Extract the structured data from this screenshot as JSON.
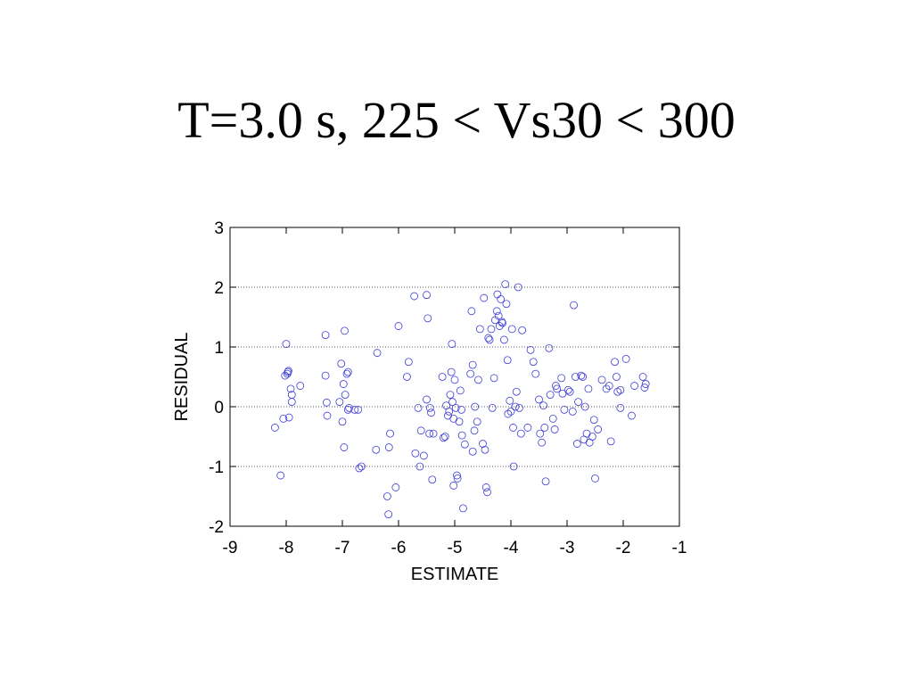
{
  "title": "T=3.0 s, 225 < Vs30 < 300",
  "colors": {
    "points": "#3b3bd6",
    "axes": "#000000",
    "grid": "#555555"
  },
  "chart_data": {
    "type": "scatter",
    "title": "T=3.0 s, 225 < Vs30 < 300",
    "xlabel": "ESTIMATE",
    "ylabel": "RESIDUAL",
    "xlim": [
      -9,
      -1
    ],
    "ylim": [
      -2,
      3
    ],
    "xticks": [
      -9,
      -8,
      -7,
      -6,
      -5,
      -4,
      -3,
      -2,
      -1
    ],
    "yticks": [
      -2,
      -1,
      0,
      1,
      2,
      3
    ],
    "grid": "horizontal-dotted",
    "marker": "open-circle",
    "series": [
      {
        "points": [
          [
            -8.2,
            -0.35
          ],
          [
            -8.1,
            -1.15
          ],
          [
            -8.05,
            -0.2
          ],
          [
            -8.0,
            1.05
          ],
          [
            -8.02,
            0.52
          ],
          [
            -7.98,
            0.55
          ],
          [
            -7.96,
            0.6
          ],
          [
            -7.97,
            0.58
          ],
          [
            -7.95,
            -0.18
          ],
          [
            -7.92,
            0.3
          ],
          [
            -7.9,
            0.2
          ],
          [
            -7.9,
            0.08
          ],
          [
            -7.75,
            0.35
          ],
          [
            -7.3,
            1.2
          ],
          [
            -7.3,
            0.52
          ],
          [
            -7.28,
            0.07
          ],
          [
            -7.27,
            -0.15
          ],
          [
            -7.05,
            0.08
          ],
          [
            -7.02,
            0.72
          ],
          [
            -7.0,
            -0.25
          ],
          [
            -6.98,
            0.38
          ],
          [
            -6.96,
            1.27
          ],
          [
            -6.95,
            0.2
          ],
          [
            -6.97,
            -0.68
          ],
          [
            -6.92,
            0.55
          ],
          [
            -6.9,
            0.58
          ],
          [
            -6.9,
            -0.05
          ],
          [
            -6.88,
            -0.02
          ],
          [
            -6.78,
            -0.05
          ],
          [
            -6.72,
            -0.05
          ],
          [
            -6.7,
            -1.03
          ],
          [
            -6.66,
            -1.0
          ],
          [
            -6.4,
            -0.72
          ],
          [
            -6.38,
            0.9
          ],
          [
            -6.2,
            -1.5
          ],
          [
            -6.18,
            -1.8
          ],
          [
            -6.17,
            -0.68
          ],
          [
            -6.15,
            -0.45
          ],
          [
            -6.05,
            -1.35
          ],
          [
            -6.0,
            1.35
          ],
          [
            -5.85,
            0.5
          ],
          [
            -5.82,
            0.75
          ],
          [
            -5.72,
            1.85
          ],
          [
            -5.7,
            -0.78
          ],
          [
            -5.65,
            -0.02
          ],
          [
            -5.62,
            -1.0
          ],
          [
            -5.6,
            -0.4
          ],
          [
            -5.55,
            -0.82
          ],
          [
            -5.5,
            1.87
          ],
          [
            -5.5,
            0.12
          ],
          [
            -5.48,
            1.48
          ],
          [
            -5.45,
            -0.45
          ],
          [
            -5.44,
            -0.02
          ],
          [
            -5.42,
            -0.1
          ],
          [
            -5.4,
            -1.22
          ],
          [
            -5.38,
            -0.45
          ],
          [
            -5.22,
            0.5
          ],
          [
            -5.2,
            -0.52
          ],
          [
            -5.17,
            -0.5
          ],
          [
            -5.15,
            0.02
          ],
          [
            -5.12,
            -0.15
          ],
          [
            -5.1,
            -0.08
          ],
          [
            -5.08,
            0.2
          ],
          [
            -5.06,
            0.58
          ],
          [
            -5.05,
            1.05
          ],
          [
            -5.04,
            0.08
          ],
          [
            -5.02,
            -0.2
          ],
          [
            -5.02,
            -1.32
          ],
          [
            -5.0,
            0.45
          ],
          [
            -4.98,
            -0.02
          ],
          [
            -4.96,
            -1.15
          ],
          [
            -4.95,
            -1.2
          ],
          [
            -4.92,
            -0.25
          ],
          [
            -4.9,
            0.27
          ],
          [
            -4.88,
            -0.05
          ],
          [
            -4.87,
            -0.48
          ],
          [
            -4.85,
            -1.7
          ],
          [
            -4.82,
            -0.63
          ],
          [
            -4.72,
            0.55
          ],
          [
            -4.7,
            1.6
          ],
          [
            -4.68,
            -0.75
          ],
          [
            -4.68,
            0.7
          ],
          [
            -4.65,
            -0.4
          ],
          [
            -4.64,
            0.0
          ],
          [
            -4.6,
            -0.25
          ],
          [
            -4.58,
            0.45
          ],
          [
            -4.55,
            1.3
          ],
          [
            -4.5,
            -0.62
          ],
          [
            -4.48,
            1.82
          ],
          [
            -4.46,
            -0.72
          ],
          [
            -4.44,
            -1.35
          ],
          [
            -4.42,
            -1.43
          ],
          [
            -4.4,
            1.15
          ],
          [
            -4.38,
            1.12
          ],
          [
            -4.35,
            1.3
          ],
          [
            -4.33,
            -0.02
          ],
          [
            -4.3,
            0.48
          ],
          [
            -4.28,
            1.45
          ],
          [
            -4.25,
            1.6
          ],
          [
            -4.24,
            1.88
          ],
          [
            -4.22,
            1.52
          ],
          [
            -4.2,
            1.35
          ],
          [
            -4.18,
            1.8
          ],
          [
            -4.16,
            1.42
          ],
          [
            -4.15,
            1.4
          ],
          [
            -4.12,
            1.12
          ],
          [
            -4.1,
            2.05
          ],
          [
            -4.08,
            1.72
          ],
          [
            -4.06,
            0.78
          ],
          [
            -4.05,
            -0.12
          ],
          [
            -4.02,
            0.1
          ],
          [
            -4.0,
            -0.08
          ],
          [
            -3.98,
            1.3
          ],
          [
            -3.96,
            -0.35
          ],
          [
            -3.95,
            -1.0
          ],
          [
            -3.92,
            0.0
          ],
          [
            -3.9,
            0.25
          ],
          [
            -3.87,
            2.0
          ],
          [
            -3.85,
            -0.02
          ],
          [
            -3.82,
            -0.45
          ],
          [
            -3.8,
            1.28
          ],
          [
            -3.7,
            -0.35
          ],
          [
            -3.65,
            0.95
          ],
          [
            -3.6,
            0.75
          ],
          [
            -3.56,
            0.55
          ],
          [
            -3.5,
            0.12
          ],
          [
            -3.48,
            -0.45
          ],
          [
            -3.45,
            -0.6
          ],
          [
            -3.42,
            0.02
          ],
          [
            -3.4,
            -0.35
          ],
          [
            -3.38,
            -1.25
          ],
          [
            -3.32,
            0.98
          ],
          [
            -3.3,
            0.2
          ],
          [
            -3.25,
            -0.2
          ],
          [
            -3.22,
            -0.38
          ],
          [
            -3.2,
            0.35
          ],
          [
            -3.18,
            0.3
          ],
          [
            -3.1,
            0.48
          ],
          [
            -3.08,
            0.22
          ],
          [
            -3.05,
            -0.05
          ],
          [
            -2.98,
            0.28
          ],
          [
            -2.95,
            0.25
          ],
          [
            -2.9,
            -0.08
          ],
          [
            -2.88,
            1.7
          ],
          [
            -2.85,
            0.5
          ],
          [
            -2.82,
            -0.62
          ],
          [
            -2.8,
            0.08
          ],
          [
            -2.75,
            0.52
          ],
          [
            -2.72,
            0.5
          ],
          [
            -2.7,
            -0.55
          ],
          [
            -2.68,
            0.0
          ],
          [
            -2.65,
            -0.45
          ],
          [
            -2.62,
            0.3
          ],
          [
            -2.6,
            -0.6
          ],
          [
            -2.55,
            -0.5
          ],
          [
            -2.52,
            -0.22
          ],
          [
            -2.5,
            -1.2
          ],
          [
            -2.45,
            -0.38
          ],
          [
            -2.38,
            0.45
          ],
          [
            -2.3,
            0.3
          ],
          [
            -2.25,
            0.35
          ],
          [
            -2.22,
            -0.58
          ],
          [
            -2.15,
            0.75
          ],
          [
            -2.12,
            0.5
          ],
          [
            -2.1,
            0.25
          ],
          [
            -2.05,
            0.28
          ],
          [
            -2.05,
            -0.02
          ],
          [
            -1.95,
            0.8
          ],
          [
            -1.85,
            -0.15
          ],
          [
            -1.8,
            0.35
          ],
          [
            -1.65,
            0.5
          ],
          [
            -1.62,
            0.32
          ],
          [
            -1.6,
            0.38
          ]
        ]
      }
    ]
  }
}
